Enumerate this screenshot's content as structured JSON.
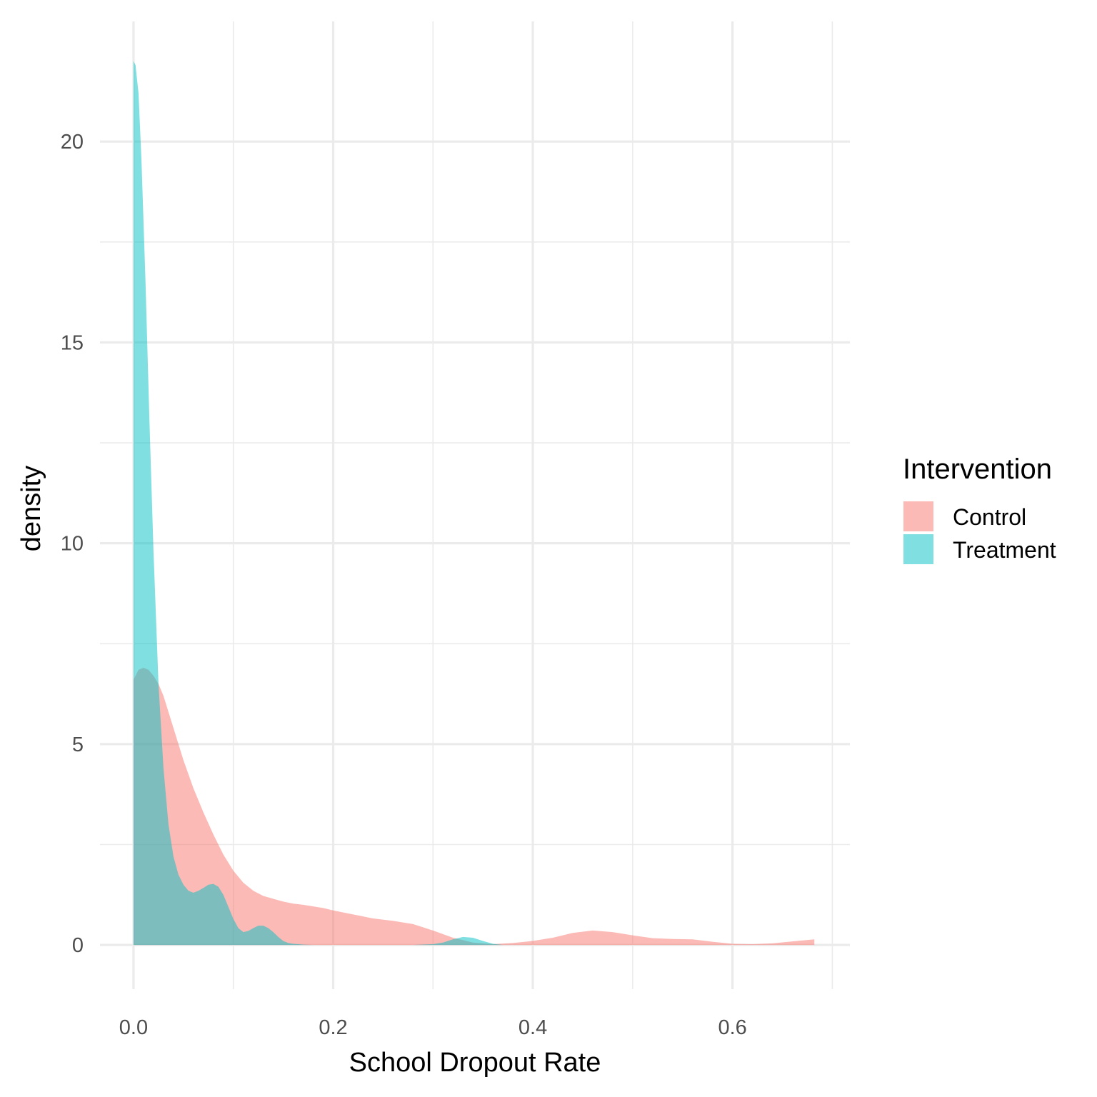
{
  "chart_data": {
    "type": "area",
    "subtype": "density",
    "title": "",
    "xlabel": "School Dropout Rate",
    "ylabel": "density",
    "xlim": [
      -0.0336,
      0.7176
    ],
    "ylim": [
      -1.1,
      22.99
    ],
    "x_ticks": [
      0.0,
      0.2,
      0.4,
      0.6
    ],
    "x_tick_labels": [
      "0.0",
      "0.2",
      "0.4",
      "0.6"
    ],
    "y_ticks": [
      0,
      5,
      10,
      15,
      20
    ],
    "y_tick_labels": [
      "0",
      "5",
      "10",
      "15",
      "20"
    ],
    "x_minor_ticks": [
      0.1,
      0.3,
      0.5,
      0.7
    ],
    "y_minor_ticks": [
      2.5,
      7.5,
      12.5,
      17.5
    ],
    "grid": true,
    "legend": {
      "title": "Intervention",
      "position": "right"
    },
    "series": [
      {
        "name": "Control",
        "color": "#F8766D",
        "opacity": 0.5,
        "x": [
          0.0,
          0.005,
          0.01,
          0.015,
          0.02,
          0.025,
          0.03,
          0.04,
          0.05,
          0.06,
          0.07,
          0.08,
          0.09,
          0.1,
          0.11,
          0.12,
          0.13,
          0.14,
          0.15,
          0.16,
          0.17,
          0.18,
          0.19,
          0.2,
          0.22,
          0.24,
          0.26,
          0.28,
          0.3,
          0.32,
          0.34,
          0.36,
          0.38,
          0.4,
          0.42,
          0.44,
          0.46,
          0.48,
          0.5,
          0.52,
          0.54,
          0.56,
          0.58,
          0.6,
          0.62,
          0.64,
          0.66,
          0.682
        ],
        "y": [
          6.6,
          6.85,
          6.9,
          6.85,
          6.7,
          6.5,
          6.2,
          5.4,
          4.6,
          3.9,
          3.3,
          2.75,
          2.25,
          1.85,
          1.55,
          1.35,
          1.22,
          1.15,
          1.08,
          1.03,
          1.0,
          0.96,
          0.92,
          0.86,
          0.76,
          0.66,
          0.6,
          0.52,
          0.36,
          0.18,
          0.06,
          0.02,
          0.05,
          0.1,
          0.18,
          0.3,
          0.36,
          0.32,
          0.24,
          0.17,
          0.15,
          0.14,
          0.08,
          0.03,
          0.02,
          0.04,
          0.09,
          0.14
        ]
      },
      {
        "name": "Treatment",
        "color": "#00BFC4",
        "opacity": 0.5,
        "x": [
          0.0,
          0.002,
          0.005,
          0.008,
          0.012,
          0.016,
          0.02,
          0.025,
          0.03,
          0.035,
          0.04,
          0.045,
          0.05,
          0.055,
          0.06,
          0.065,
          0.07,
          0.075,
          0.08,
          0.085,
          0.09,
          0.095,
          0.1,
          0.105,
          0.11,
          0.115,
          0.12,
          0.125,
          0.13,
          0.135,
          0.14,
          0.145,
          0.15,
          0.155,
          0.16,
          0.165,
          0.17,
          0.175,
          0.18,
          0.19,
          0.2,
          0.22,
          0.24,
          0.26,
          0.28,
          0.3,
          0.31,
          0.32,
          0.33,
          0.34,
          0.35,
          0.36,
          0.37
        ],
        "y": [
          22.0,
          21.9,
          21.2,
          19.5,
          16.5,
          13.0,
          9.8,
          6.5,
          4.4,
          3.0,
          2.2,
          1.75,
          1.5,
          1.35,
          1.3,
          1.35,
          1.42,
          1.5,
          1.52,
          1.45,
          1.25,
          0.95,
          0.65,
          0.42,
          0.32,
          0.35,
          0.42,
          0.48,
          0.48,
          0.42,
          0.32,
          0.2,
          0.1,
          0.05,
          0.03,
          0.02,
          0.01,
          0.005,
          0.0,
          0.0,
          0.0,
          0.0,
          0.0,
          0.0,
          0.0,
          0.02,
          0.06,
          0.14,
          0.2,
          0.18,
          0.1,
          0.03,
          0.0
        ]
      }
    ]
  }
}
